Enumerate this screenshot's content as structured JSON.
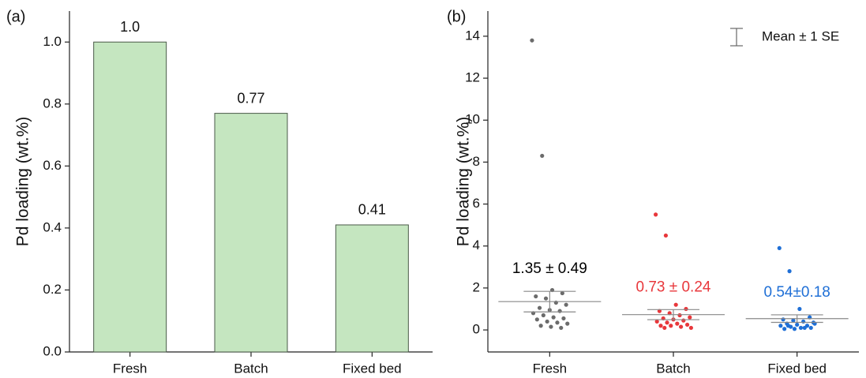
{
  "chart_data": [
    {
      "type": "bar",
      "panel_label": "(a)",
      "y_label": "Pd loading (wt.%)",
      "categories": [
        "Fresh",
        "Batch",
        "Fixed bed"
      ],
      "values": [
        1.0,
        0.77,
        0.41
      ],
      "value_labels": [
        "1.0",
        "0.77",
        "0.41"
      ],
      "color": "#c5e6c0",
      "edge_color": "#4a5a48",
      "ylim": [
        0,
        1.1
      ],
      "yticks": [
        {
          "value": 0,
          "label": "0.0"
        },
        0.2,
        0.4,
        0.6,
        0.8,
        {
          "value": 1,
          "label": "1.0"
        }
      ]
    },
    {
      "type": "strip",
      "panel_label": "(b)",
      "y_label": "Pd loading (wt.%)",
      "categories": [
        "Fresh",
        "Batch",
        "Fixed bed"
      ],
      "legend": "Mean ± 1 SE",
      "legend_position": "upper right",
      "groups": [
        {
          "color": "#6b6b6b",
          "label_color": "#000000",
          "mean": 1.35,
          "se": 0.49,
          "mean_label": "1.35 ± 0.49",
          "values": [
            13.8,
            8.3,
            1.9,
            1.75,
            1.6,
            1.5,
            1.3,
            1.2,
            1.05,
            0.95,
            0.9,
            0.8,
            0.7,
            0.6,
            0.55,
            0.5,
            0.4,
            0.35,
            0.3,
            0.2,
            0.15,
            0.1
          ]
        },
        {
          "color": "#e8373b",
          "label_color": "#e8373b",
          "mean": 0.73,
          "se": 0.24,
          "mean_label": "0.73 ± 0.24",
          "values": [
            5.5,
            4.5,
            1.2,
            1.0,
            0.9,
            0.8,
            0.7,
            0.6,
            0.55,
            0.5,
            0.45,
            0.4,
            0.35,
            0.3,
            0.25,
            0.2,
            0.2,
            0.15,
            0.1,
            0.1
          ]
        },
        {
          "color": "#1f6fd6",
          "label_color": "#1f6fd6",
          "mean": 0.54,
          "se": 0.18,
          "mean_label": "0.54±0.18",
          "values": [
            3.9,
            2.8,
            1.0,
            0.6,
            0.5,
            0.45,
            0.4,
            0.35,
            0.3,
            0.25,
            0.2,
            0.2,
            0.15,
            0.1,
            0.1,
            0.05,
            0.05,
            0.1,
            0.3,
            0.2
          ]
        }
      ],
      "ylim": [
        -1.05,
        15.2
      ],
      "yticks": [
        0,
        2,
        4,
        6,
        8,
        10,
        12,
        14
      ]
    }
  ]
}
